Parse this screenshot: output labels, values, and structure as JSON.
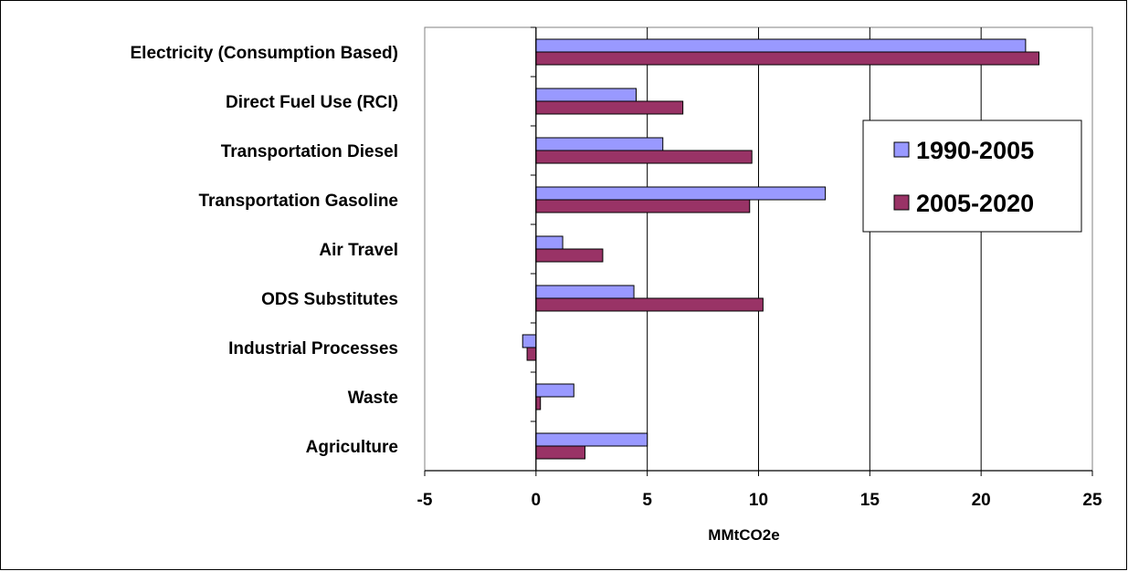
{
  "chart_data": {
    "type": "bar",
    "orientation": "horizontal",
    "categories": [
      "Electricity (Consumption Based)",
      "Direct Fuel Use (RCI)",
      "Transportation Diesel",
      "Transportation Gasoline",
      "Air Travel",
      "ODS Substitutes",
      "Industrial Processes",
      "Waste",
      "Agriculture"
    ],
    "series": [
      {
        "name": "1990-2005",
        "color": "#9999ff",
        "values": [
          22.0,
          4.5,
          5.7,
          13.0,
          1.2,
          4.4,
          -0.6,
          1.7,
          5.0
        ]
      },
      {
        "name": "2005-2020",
        "color": "#993366",
        "values": [
          22.6,
          6.6,
          9.7,
          9.6,
          3.0,
          10.2,
          -0.4,
          0.2,
          2.2
        ]
      }
    ],
    "xlabel": "MMtCO2e",
    "ylabel": "",
    "title": "",
    "xlim": [
      -5,
      25
    ],
    "xticks": [
      "-5",
      "0",
      "5",
      "10",
      "15",
      "20",
      "25"
    ],
    "grid": true,
    "legend_position": "right"
  }
}
